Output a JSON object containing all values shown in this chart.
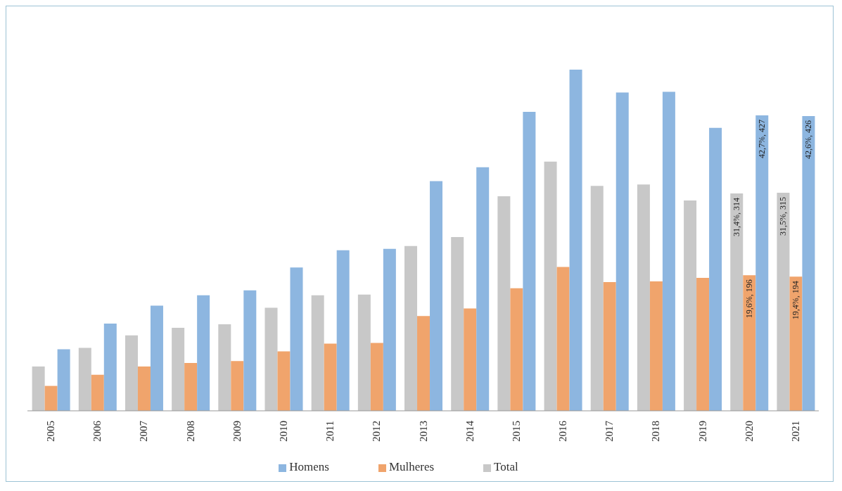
{
  "chart_data": {
    "type": "bar",
    "categories": [
      "2005",
      "2006",
      "2007",
      "2008",
      "2009",
      "2010",
      "2011",
      "2012",
      "2013",
      "2014",
      "2015",
      "2016",
      "2017",
      "2018",
      "2019",
      "2020",
      "2021"
    ],
    "series": [
      {
        "name": "Total",
        "color": "#c8c8c8",
        "values": [
          64,
          91,
          109,
          120,
          125,
          149,
          167,
          168,
          238,
          251,
          310,
          360,
          325,
          327,
          304,
          314,
          315
        ],
        "value_labels": [
          null,
          null,
          null,
          null,
          null,
          null,
          null,
          null,
          null,
          null,
          null,
          null,
          null,
          null,
          null,
          "31,4%, 314",
          "31,5%, 315"
        ]
      },
      {
        "name": "Mulheres",
        "color": "#f0a46c",
        "values": [
          36,
          52,
          64,
          69,
          72,
          86,
          97,
          98,
          137,
          148,
          177,
          208,
          186,
          187,
          192,
          196,
          194
        ],
        "value_labels": [
          null,
          null,
          null,
          null,
          null,
          null,
          null,
          null,
          null,
          null,
          null,
          null,
          null,
          null,
          null,
          "19,6%, 196",
          "19,4%, 194"
        ]
      },
      {
        "name": "Homens",
        "color": "#8db6e0",
        "values": [
          89,
          126,
          152,
          167,
          174,
          207,
          232,
          234,
          332,
          352,
          432,
          493,
          460,
          461,
          409,
          427,
          426
        ],
        "value_labels": [
          null,
          null,
          null,
          null,
          null,
          null,
          null,
          null,
          null,
          null,
          null,
          null,
          null,
          null,
          null,
          "42,7%, 427",
          "42,6%, 426"
        ]
      }
    ],
    "legend": "bottom"
  }
}
